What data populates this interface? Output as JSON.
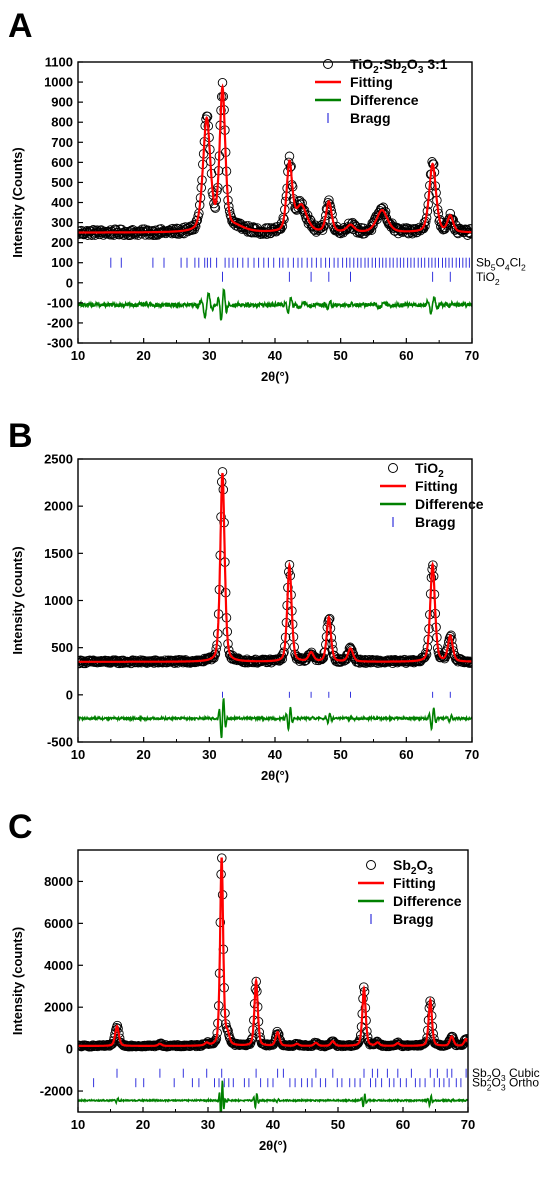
{
  "chart_data": [
    {
      "panel": "A",
      "type": "line",
      "xlabel": "2θ(°)",
      "ylabel": "Intensity (Counts)",
      "xlim": [
        10,
        70
      ],
      "ylim": [
        -300,
        1100
      ],
      "xticks": [
        10,
        20,
        30,
        40,
        50,
        60,
        70
      ],
      "yticks": [
        -300,
        -200,
        -100,
        0,
        100,
        200,
        300,
        400,
        500,
        600,
        700,
        800,
        900,
        1000,
        1100
      ],
      "baseline": 250,
      "diff_offset": -110,
      "noise": 15,
      "diff_noise": 10,
      "peaks": [
        {
          "c": 29.6,
          "h": 560,
          "w": 0.6
        },
        {
          "c": 32.0,
          "h": 700,
          "w": 0.45
        },
        {
          "c": 34.0,
          "h": 25,
          "w": 1.5
        },
        {
          "c": 42.2,
          "h": 335,
          "w": 0.45
        },
        {
          "c": 44.0,
          "h": 130,
          "w": 0.9
        },
        {
          "c": 48.2,
          "h": 150,
          "w": 0.45
        },
        {
          "c": 51.5,
          "h": 35,
          "w": 0.6
        },
        {
          "c": 56.3,
          "h": 110,
          "w": 0.9
        },
        {
          "c": 64.0,
          "h": 340,
          "w": 0.55
        },
        {
          "c": 66.7,
          "h": 80,
          "w": 0.45
        }
      ],
      "bragg_rows": [
        {
          "y": 100,
          "label": "Sb5O4Cl2",
          "positions": [
            15.0,
            16.6,
            21.4,
            23.1,
            25.7,
            26.6,
            27.8,
            28.4,
            29.3,
            29.7,
            30.2,
            31.1,
            32.4,
            33.0,
            33.6,
            34.3,
            35.1,
            35.9,
            36.8,
            37.5,
            38.3,
            39.0,
            39.8,
            40.7,
            41.2,
            42.0,
            42.8,
            43.5,
            44.1,
            44.9,
            45.6,
            46.3,
            47.0,
            47.7,
            48.3,
            49.0,
            49.6,
            50.3,
            50.9,
            51.4,
            52.0,
            52.6,
            53.1,
            53.7,
            54.2,
            54.8,
            55.3,
            55.9,
            56.4,
            56.9,
            57.5,
            58.0,
            58.6,
            59.1,
            59.6,
            60.2,
            60.7,
            61.2,
            61.8,
            62.3,
            62.8,
            63.4,
            63.9,
            64.4,
            64.9,
            65.5,
            66.0,
            66.5,
            67.0,
            67.6,
            68.1,
            68.6,
            69.1,
            69.6
          ]
        },
        {
          "y": 30,
          "label": "TiO2",
          "positions": [
            32.0,
            42.2,
            45.5,
            48.2,
            51.5,
            64.0,
            66.7
          ]
        }
      ],
      "legend": [
        {
          "kind": "circle",
          "label": "TiO2:Sb2O3 3:1"
        },
        {
          "kind": "red",
          "label": "Fitting"
        },
        {
          "kind": "green",
          "label": "Difference"
        },
        {
          "kind": "bragg",
          "label": "Bragg"
        }
      ]
    },
    {
      "panel": "B",
      "type": "line",
      "xlabel": "2θ(°)",
      "ylabel": "Intensity (counts)",
      "xlim": [
        10,
        70
      ],
      "ylim": [
        -500,
        2500
      ],
      "xticks": [
        10,
        20,
        30,
        40,
        50,
        60,
        70
      ],
      "yticks": [
        -500,
        0,
        500,
        1000,
        1500,
        2000,
        2500
      ],
      "baseline": 350,
      "diff_offset": -250,
      "noise": 18,
      "diff_noise": 12,
      "peaks": [
        {
          "c": 32.0,
          "h": 2000,
          "w": 0.35
        },
        {
          "c": 42.2,
          "h": 1020,
          "w": 0.35
        },
        {
          "c": 45.5,
          "h": 95,
          "w": 0.4
        },
        {
          "c": 48.2,
          "h": 470,
          "w": 0.35
        },
        {
          "c": 51.5,
          "h": 140,
          "w": 0.4
        },
        {
          "c": 64.0,
          "h": 1030,
          "w": 0.38
        },
        {
          "c": 66.7,
          "h": 270,
          "w": 0.38
        }
      ],
      "bragg_rows": [
        {
          "y": 0,
          "label": "",
          "positions": [
            32.0,
            42.2,
            45.5,
            48.2,
            51.5,
            64.0,
            66.7
          ]
        }
      ],
      "legend": [
        {
          "kind": "circle",
          "label": "TiO2"
        },
        {
          "kind": "red",
          "label": "Fitting"
        },
        {
          "kind": "green",
          "label": "Difference"
        },
        {
          "kind": "bragg",
          "label": "Bragg"
        }
      ]
    },
    {
      "panel": "C",
      "type": "line",
      "xlabel": "2θ(°)",
      "ylabel": "Intensity (counts)",
      "xlim": [
        10,
        70
      ],
      "ylim": [
        -3000,
        9500
      ],
      "xticks": [
        10,
        20,
        30,
        40,
        50,
        60,
        70
      ],
      "yticks": [
        -2000,
        0,
        2000,
        4000,
        6000,
        8000
      ],
      "baseline": 150,
      "diff_offset": -2450,
      "noise": 40,
      "diff_noise": 30,
      "peaks": [
        {
          "c": 16.0,
          "h": 950,
          "w": 0.3
        },
        {
          "c": 22.6,
          "h": 100,
          "w": 0.3
        },
        {
          "c": 29.8,
          "h": 120,
          "w": 0.3
        },
        {
          "c": 32.1,
          "h": 8950,
          "w": 0.25
        },
        {
          "c": 33.0,
          "h": 500,
          "w": 0.3
        },
        {
          "c": 37.4,
          "h": 3100,
          "w": 0.27
        },
        {
          "c": 40.7,
          "h": 650,
          "w": 0.3
        },
        {
          "c": 43.7,
          "h": 100,
          "w": 0.3
        },
        {
          "c": 46.6,
          "h": 150,
          "w": 0.3
        },
        {
          "c": 49.2,
          "h": 220,
          "w": 0.3
        },
        {
          "c": 54.0,
          "h": 2750,
          "w": 0.27
        },
        {
          "c": 56.1,
          "h": 150,
          "w": 0.3
        },
        {
          "c": 59.2,
          "h": 130,
          "w": 0.3
        },
        {
          "c": 64.2,
          "h": 2200,
          "w": 0.27
        },
        {
          "c": 67.5,
          "h": 450,
          "w": 0.3
        },
        {
          "c": 69.7,
          "h": 320,
          "w": 0.3
        }
      ],
      "bragg_rows": [
        {
          "y": -1150,
          "label": "Sb2O3 Cubic",
          "positions": [
            16.0,
            22.6,
            26.2,
            29.8,
            32.1,
            37.4,
            40.7,
            41.6,
            46.6,
            49.2,
            54.0,
            55.3,
            56.1,
            57.6,
            59.2,
            61.3,
            64.2,
            65.3,
            66.8,
            67.5,
            69.7
          ]
        },
        {
          "y": -1600,
          "label": "Sb2O3 Ortho",
          "positions": [
            12.4,
            18.9,
            20.1,
            24.8,
            27.6,
            28.6,
            31.0,
            31.7,
            32.5,
            33.2,
            33.9,
            35.6,
            36.3,
            38.1,
            39.2,
            40.0,
            42.6,
            43.4,
            44.4,
            45.3,
            46.0,
            47.3,
            48.1,
            49.9,
            50.6,
            51.8,
            52.6,
            53.4,
            55.0,
            55.8,
            56.7,
            57.9,
            58.6,
            59.6,
            60.5,
            61.9,
            62.6,
            63.4,
            64.8,
            65.6,
            66.3,
            67.1,
            68.2,
            68.9
          ]
        }
      ],
      "legend": [
        {
          "kind": "circle",
          "label": "Sb2O3"
        },
        {
          "kind": "red",
          "label": "Fitting"
        },
        {
          "kind": "green",
          "label": "Difference"
        },
        {
          "kind": "bragg",
          "label": "Bragg"
        }
      ]
    }
  ],
  "colors": {
    "fit": "#ff0000",
    "difference": "#008000",
    "bragg": "#3333dd",
    "observed": "#000000"
  }
}
